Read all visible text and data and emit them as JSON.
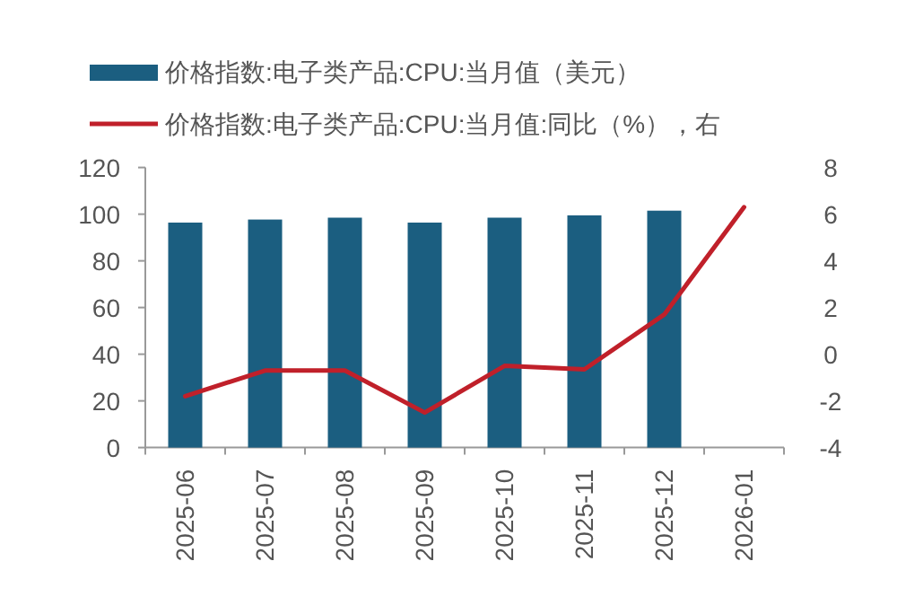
{
  "chart_data": {
    "type": "bar",
    "categories": [
      "2025-06",
      "2025-07",
      "2025-08",
      "2025-09",
      "2025-10",
      "2025-11",
      "2025-12",
      "2026-01"
    ],
    "series": [
      {
        "name": "价格指数:电子类产品:CPU:当月值（美元）",
        "color": "#1b5e80",
        "values": [
          96.4,
          97.7,
          98.5,
          96.4,
          98.5,
          99.5,
          101.5,
          null
        ]
      },
      {
        "name": "价格指数:电子类产品:CPU:当月值:同比（%），右",
        "type": "line",
        "axis": "y2",
        "color": "#c0202a",
        "values": [
          -1.8,
          -0.7,
          -0.7,
          -2.5,
          -0.5,
          -0.65,
          1.7,
          6.3
        ]
      }
    ],
    "ylim": [
      0,
      120
    ],
    "yticks": [
      0,
      20,
      40,
      60,
      80,
      100,
      120
    ],
    "y2lim": [
      -4,
      8
    ],
    "y2ticks": [
      -4,
      -2,
      0,
      2,
      4,
      6,
      8
    ],
    "legend": "top",
    "grid": false
  }
}
